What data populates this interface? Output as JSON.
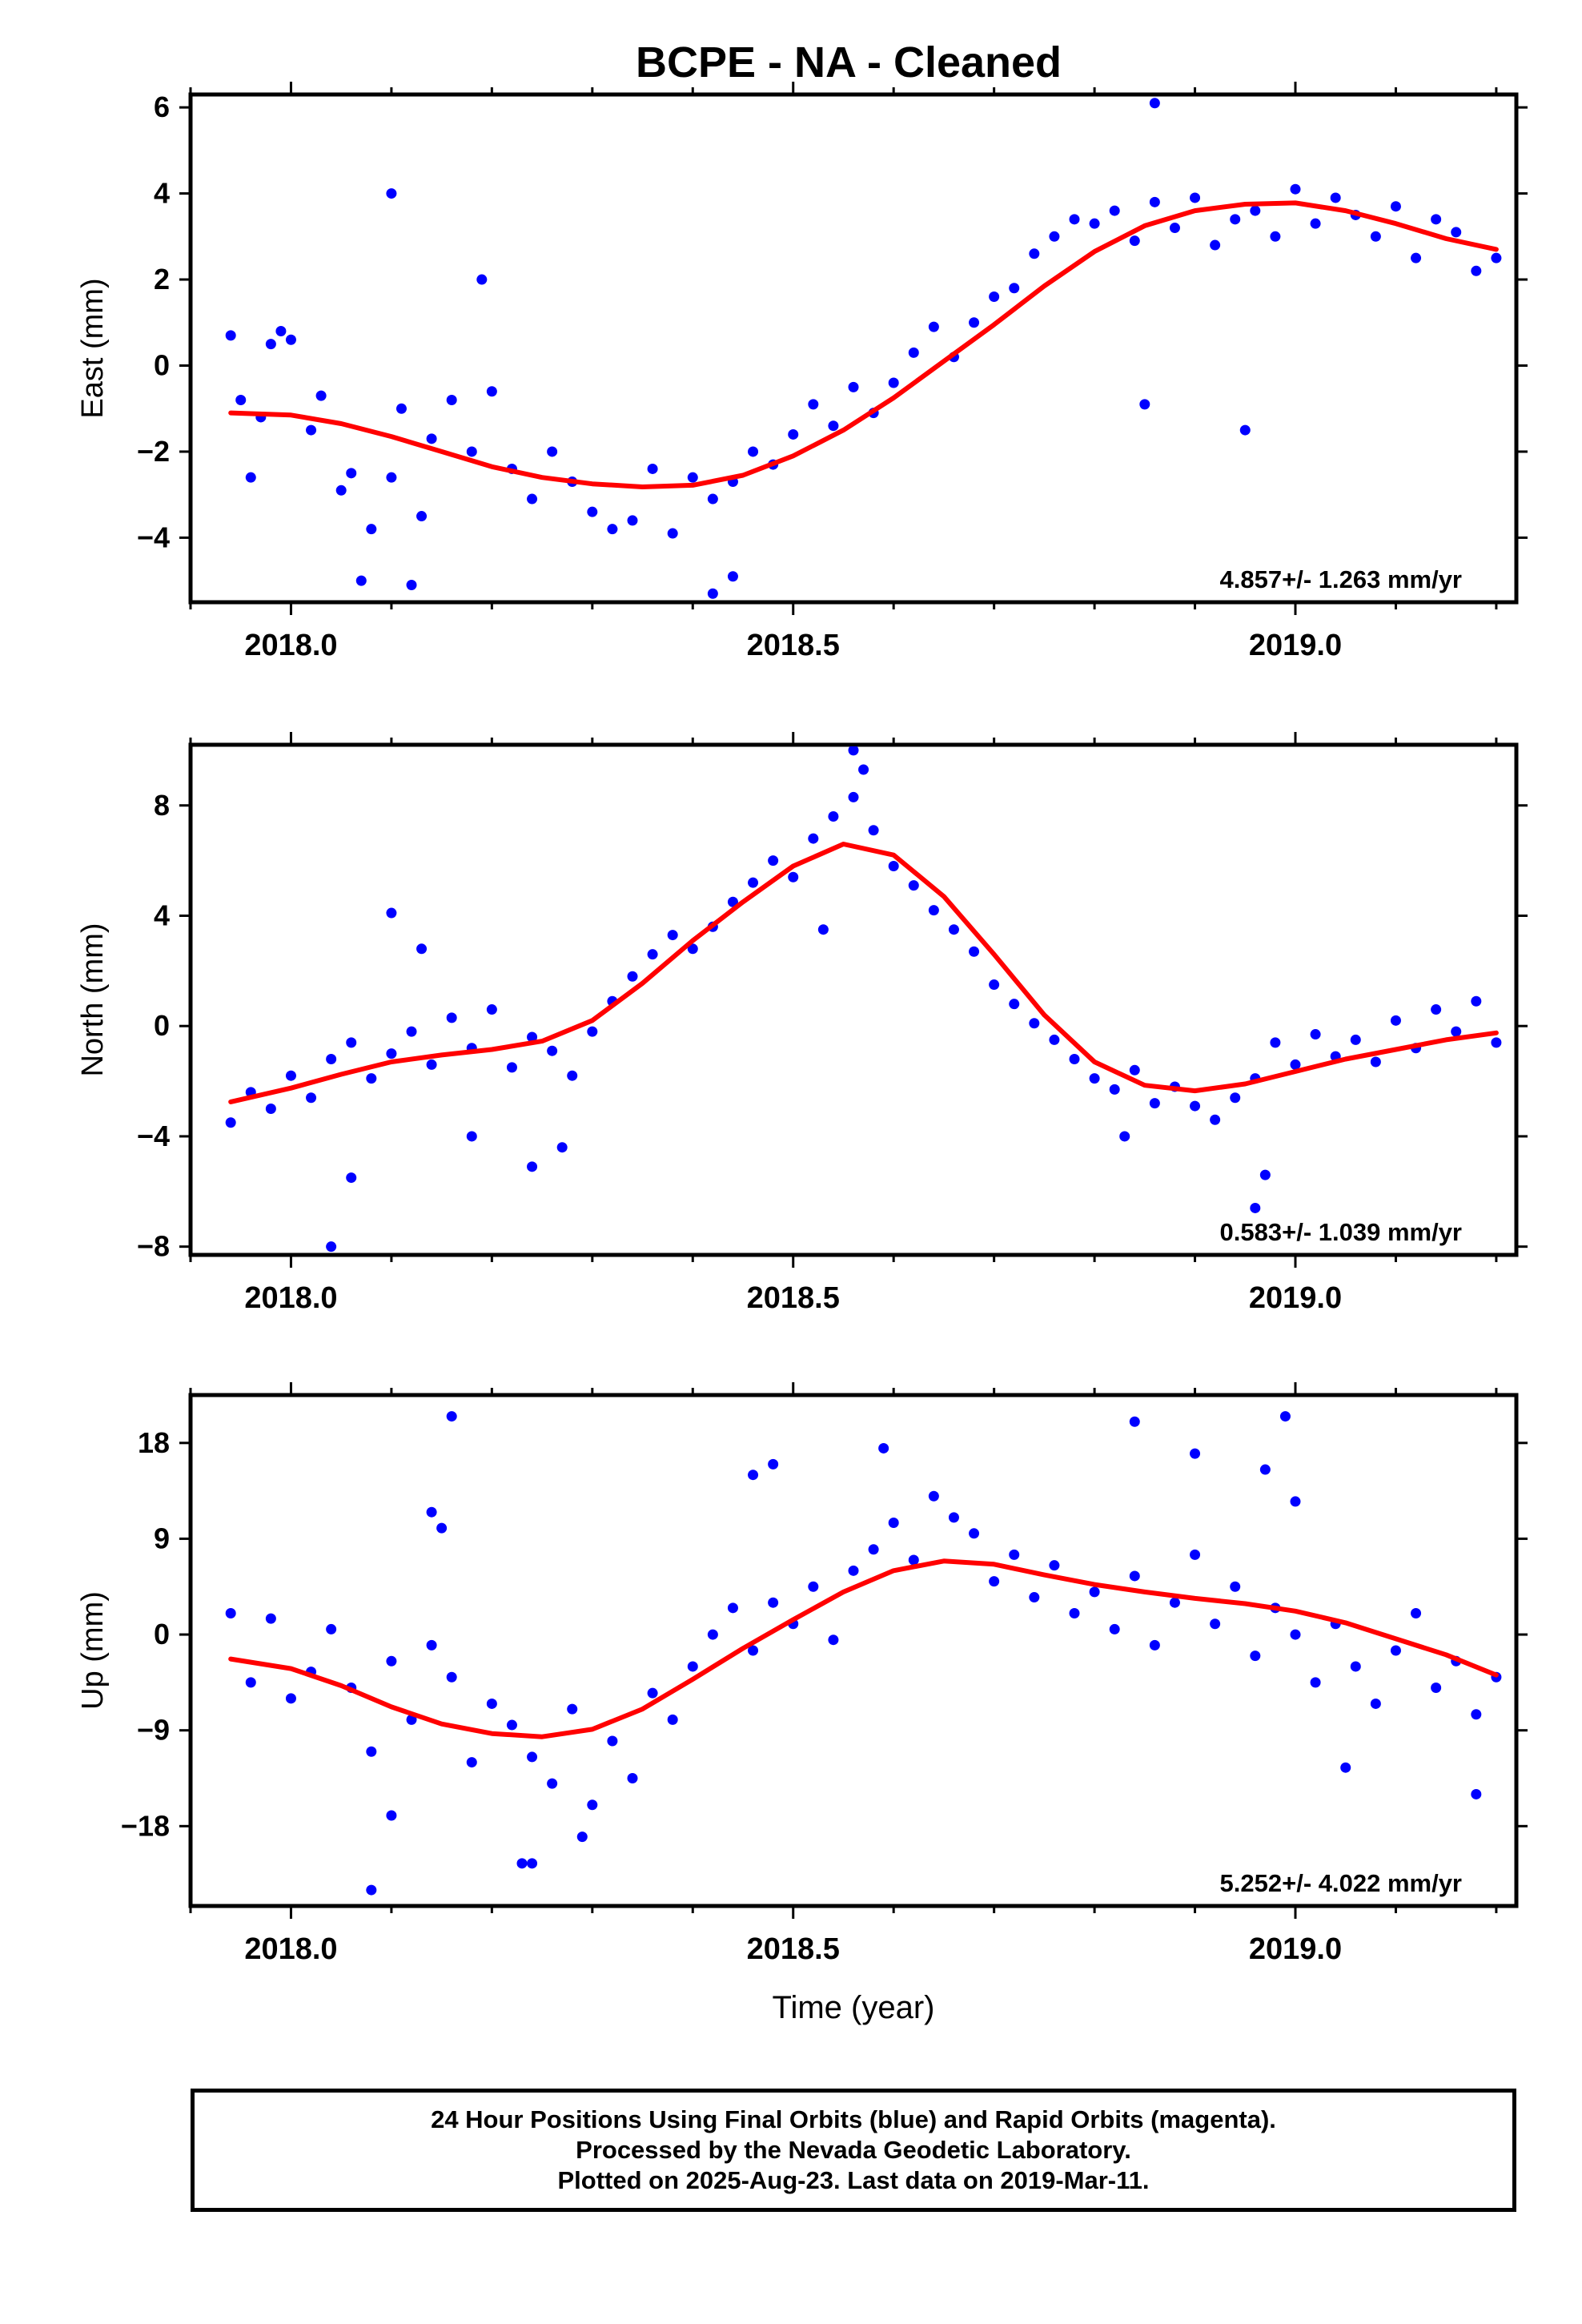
{
  "title": "BCPE  - NA - Cleaned",
  "colors": {
    "points": "#0000ff",
    "fit": "#ff0000",
    "axes": "#000000"
  },
  "chart_data": [
    {
      "type": "scatter",
      "ylabel": "East (mm)",
      "xlim": [
        2017.9,
        2019.22
      ],
      "ylim": [
        -5.5,
        6.3
      ],
      "yticks": [
        -4,
        -2,
        0,
        2,
        4,
        6
      ],
      "xticks": [
        "2018.0",
        "2018.5",
        "2019.0"
      ],
      "rate_label": "4.857+/- 1.263 mm/yr",
      "x": [
        2017.94,
        2017.95,
        2017.96,
        2017.97,
        2017.98,
        2017.99,
        2018.0,
        2018.02,
        2018.03,
        2018.05,
        2018.06,
        2018.08,
        2018.1,
        2018.11,
        2018.13,
        2018.14,
        2018.16,
        2018.18,
        2018.2,
        2018.22,
        2018.24,
        2018.26,
        2018.28,
        2018.3,
        2018.32,
        2018.34,
        2018.36,
        2018.38,
        2018.4,
        2018.42,
        2018.44,
        2018.46,
        2018.48,
        2018.5,
        2018.52,
        2018.54,
        2018.56,
        2018.58,
        2018.6,
        2018.62,
        2018.64,
        2018.66,
        2018.68,
        2018.7,
        2018.72,
        2018.74,
        2018.76,
        2018.78,
        2018.8,
        2018.82,
        2018.84,
        2018.86,
        2018.88,
        2018.9,
        2018.92,
        2018.94,
        2018.96,
        2018.98,
        2019.0,
        2019.02,
        2019.04,
        2019.06,
        2019.08,
        2019.1,
        2019.12,
        2019.14,
        2019.16,
        2019.18,
        2019.2
      ],
      "y": [
        0.7,
        -0.8,
        -2.6,
        -1.2,
        0.5,
        0.8,
        0.6,
        -1.5,
        -0.7,
        -2.9,
        -2.5,
        -3.8,
        -2.6,
        -1.0,
        -3.5,
        -1.7,
        -0.8,
        -2.0,
        -0.6,
        -2.4,
        -3.1,
        -2.0,
        -2.7,
        -3.4,
        -3.8,
        -3.6,
        -2.4,
        -3.9,
        -2.6,
        -3.1,
        -2.7,
        -2.0,
        -2.3,
        -1.6,
        -0.9,
        -1.4,
        -0.5,
        -1.1,
        -0.4,
        0.3,
        0.9,
        0.2,
        1.0,
        1.6,
        1.8,
        2.6,
        3.0,
        3.4,
        3.3,
        3.6,
        2.9,
        3.8,
        3.2,
        3.9,
        2.8,
        3.4,
        3.6,
        3.0,
        4.1,
        3.3,
        3.9,
        3.5,
        3.0,
        3.7,
        2.5,
        3.4,
        3.1,
        2.2,
        2.5
      ],
      "outliers_x": [
        2018.1,
        2018.19,
        2018.42,
        2018.44,
        2018.85,
        2018.86,
        2018.95,
        2018.12,
        2018.07
      ],
      "outliers_y": [
        4.0,
        2.0,
        -5.3,
        -4.9,
        -0.9,
        6.1,
        -1.5,
        -5.1,
        -5.0
      ],
      "fit_x": [
        2017.94,
        2018.0,
        2018.05,
        2018.1,
        2018.15,
        2018.2,
        2018.25,
        2018.3,
        2018.35,
        2018.4,
        2018.45,
        2018.5,
        2018.55,
        2018.6,
        2018.65,
        2018.7,
        2018.75,
        2018.8,
        2018.85,
        2018.9,
        2018.95,
        2019.0,
        2019.05,
        2019.1,
        2019.15,
        2019.2
      ],
      "fit_y": [
        -1.1,
        -1.15,
        -1.35,
        -1.65,
        -2.0,
        -2.35,
        -2.6,
        -2.75,
        -2.82,
        -2.78,
        -2.55,
        -2.1,
        -1.5,
        -0.75,
        0.1,
        0.95,
        1.85,
        2.65,
        3.25,
        3.6,
        3.75,
        3.78,
        3.6,
        3.3,
        2.95,
        2.7
      ]
    },
    {
      "type": "scatter",
      "ylabel": "North (mm)",
      "xlim": [
        2017.9,
        2019.22
      ],
      "ylim": [
        -8.3,
        10.2
      ],
      "yticks": [
        -8,
        -4,
        0,
        4,
        8
      ],
      "xticks": [
        "2018.0",
        "2018.5",
        "2019.0"
      ],
      "rate_label": "0.583+/- 1.039 mm/yr",
      "x": [
        2017.94,
        2017.96,
        2017.98,
        2018.0,
        2018.02,
        2018.04,
        2018.06,
        2018.08,
        2018.1,
        2018.12,
        2018.14,
        2018.16,
        2018.18,
        2018.2,
        2018.22,
        2018.24,
        2018.26,
        2018.28,
        2018.3,
        2018.32,
        2018.34,
        2018.36,
        2018.38,
        2018.4,
        2018.42,
        2018.44,
        2018.46,
        2018.48,
        2018.5,
        2018.52,
        2018.54,
        2018.56,
        2018.58,
        2018.6,
        2018.62,
        2018.64,
        2018.66,
        2018.68,
        2018.7,
        2018.72,
        2018.74,
        2018.76,
        2018.78,
        2018.8,
        2018.82,
        2018.84,
        2018.86,
        2018.88,
        2018.9,
        2018.92,
        2018.94,
        2018.96,
        2018.98,
        2019.0,
        2019.02,
        2019.04,
        2019.06,
        2019.08,
        2019.1,
        2019.12,
        2019.14,
        2019.16,
        2019.18,
        2019.2
      ],
      "y": [
        -3.5,
        -2.4,
        -3.0,
        -1.8,
        -2.6,
        -1.2,
        -0.6,
        -1.9,
        -1.0,
        -0.2,
        -1.4,
        0.3,
        -0.8,
        0.6,
        -1.5,
        -0.4,
        -0.9,
        -1.8,
        -0.2,
        0.9,
        1.8,
        2.6,
        3.3,
        2.8,
        3.6,
        4.5,
        5.2,
        6.0,
        5.4,
        6.8,
        7.6,
        8.3,
        7.1,
        5.8,
        5.1,
        4.2,
        3.5,
        2.7,
        1.5,
        0.8,
        0.1,
        -0.5,
        -1.2,
        -1.9,
        -2.3,
        -1.6,
        -2.8,
        -2.2,
        -2.9,
        -3.4,
        -2.6,
        -1.9,
        -0.6,
        -1.4,
        -0.3,
        -1.1,
        -0.5,
        -1.3,
        0.2,
        -0.8,
        0.6,
        -0.2,
        0.9,
        -0.6
      ],
      "outliers_x": [
        2018.04,
        2018.06,
        2018.1,
        2018.13,
        2018.18,
        2018.24,
        2018.27,
        2018.53,
        2018.56,
        2018.57,
        2018.83,
        2018.96,
        2018.97
      ],
      "outliers_y": [
        -8.0,
        -5.5,
        4.1,
        2.8,
        -4.0,
        -5.1,
        -4.4,
        3.5,
        10.0,
        9.3,
        -4.0,
        -6.6,
        -5.4
      ],
      "fit_x": [
        2017.94,
        2018.0,
        2018.05,
        2018.1,
        2018.15,
        2018.2,
        2018.25,
        2018.3,
        2018.35,
        2018.4,
        2018.45,
        2018.5,
        2018.55,
        2018.6,
        2018.65,
        2018.7,
        2018.75,
        2018.8,
        2018.85,
        2018.9,
        2018.95,
        2019.0,
        2019.05,
        2019.1,
        2019.15,
        2019.2
      ],
      "fit_y": [
        -2.75,
        -2.25,
        -1.75,
        -1.3,
        -1.05,
        -0.85,
        -0.55,
        0.2,
        1.55,
        3.1,
        4.5,
        5.8,
        6.6,
        6.2,
        4.7,
        2.6,
        0.4,
        -1.3,
        -2.15,
        -2.35,
        -2.1,
        -1.65,
        -1.2,
        -0.85,
        -0.5,
        -0.25
      ]
    },
    {
      "type": "scatter",
      "ylabel": "Up (mm)",
      "xlabel": "Time (year)",
      "xlim": [
        2017.9,
        2019.22
      ],
      "ylim": [
        -25.5,
        22.5
      ],
      "yticks": [
        -18,
        -9,
        0,
        9,
        18
      ],
      "xticks": [
        "2018.0",
        "2018.5",
        "2019.0"
      ],
      "rate_label": "5.252+/- 4.022 mm/yr",
      "x": [
        2017.94,
        2017.96,
        2017.98,
        2018.0,
        2018.02,
        2018.04,
        2018.06,
        2018.08,
        2018.1,
        2018.12,
        2018.14,
        2018.16,
        2018.18,
        2018.2,
        2018.22,
        2018.24,
        2018.26,
        2018.28,
        2018.3,
        2018.32,
        2018.34,
        2018.36,
        2018.38,
        2018.4,
        2018.42,
        2018.44,
        2018.46,
        2018.48,
        2018.5,
        2018.52,
        2018.54,
        2018.56,
        2018.58,
        2018.6,
        2018.62,
        2018.64,
        2018.66,
        2018.68,
        2018.7,
        2018.72,
        2018.74,
        2018.76,
        2018.78,
        2018.8,
        2018.82,
        2018.84,
        2018.86,
        2018.88,
        2018.9,
        2018.92,
        2018.94,
        2018.96,
        2018.98,
        2019.0,
        2019.02,
        2019.04,
        2019.06,
        2019.08,
        2019.1,
        2019.12,
        2019.14,
        2019.16,
        2019.18,
        2019.2
      ],
      "y": [
        2.0,
        -4.5,
        1.5,
        -6.0,
        -3.5,
        0.5,
        -5.0,
        -11.0,
        -2.5,
        -8.0,
        -1.0,
        -4.0,
        -12.0,
        -6.5,
        -8.5,
        -11.5,
        -14.0,
        -7.0,
        -16.0,
        -10.0,
        -13.5,
        -5.5,
        -8.0,
        -3.0,
        0.0,
        2.5,
        -1.5,
        3.0,
        1.0,
        4.5,
        -0.5,
        6.0,
        8.0,
        10.5,
        7.0,
        13.0,
        11.0,
        9.5,
        5.0,
        7.5,
        3.5,
        6.5,
        2.0,
        4.0,
        0.5,
        5.5,
        -1.0,
        3.0,
        7.5,
        1.0,
        4.5,
        -2.0,
        2.5,
        0.0,
        -4.5,
        1.0,
        -3.0,
        -6.5,
        -1.5,
        2.0,
        -5.0,
        -2.5,
        -7.5,
        -4.0
      ],
      "outliers_x": [
        2018.08,
        2018.14,
        2018.15,
        2018.16,
        2018.23,
        2018.24,
        2018.29,
        2018.46,
        2018.48,
        2018.59,
        2018.84,
        2018.9,
        2018.97,
        2018.99,
        2019.0,
        2019.05,
        2019.18,
        2018.1
      ],
      "outliers_y": [
        -24.0,
        11.5,
        10.0,
        20.5,
        -21.5,
        -21.5,
        -19.0,
        15.0,
        16.0,
        17.5,
        20.0,
        17.0,
        15.5,
        20.5,
        12.5,
        -12.5,
        -15.0,
        -17.0
      ],
      "fit_x": [
        2017.94,
        2018.0,
        2018.05,
        2018.1,
        2018.15,
        2018.2,
        2018.25,
        2018.3,
        2018.35,
        2018.4,
        2018.45,
        2018.5,
        2018.55,
        2018.6,
        2018.65,
        2018.7,
        2018.75,
        2018.8,
        2018.85,
        2018.9,
        2018.95,
        2019.0,
        2019.05,
        2019.1,
        2019.15,
        2019.2
      ],
      "fit_y": [
        -2.3,
        -3.2,
        -4.8,
        -6.8,
        -8.4,
        -9.3,
        -9.6,
        -8.9,
        -7.0,
        -4.2,
        -1.3,
        1.4,
        4.0,
        6.0,
        6.9,
        6.6,
        5.6,
        4.7,
        4.0,
        3.4,
        2.9,
        2.2,
        1.1,
        -0.4,
        -1.9,
        -3.8
      ]
    }
  ],
  "caption": {
    "line1": "24 Hour Positions Using Final Orbits (blue) and Rapid Orbits (magenta).",
    "line2": "Processed by the Nevada Geodetic Laboratory.",
    "line3": "Plotted on 2025-Aug-23. Last data on 2019-Mar-11."
  }
}
